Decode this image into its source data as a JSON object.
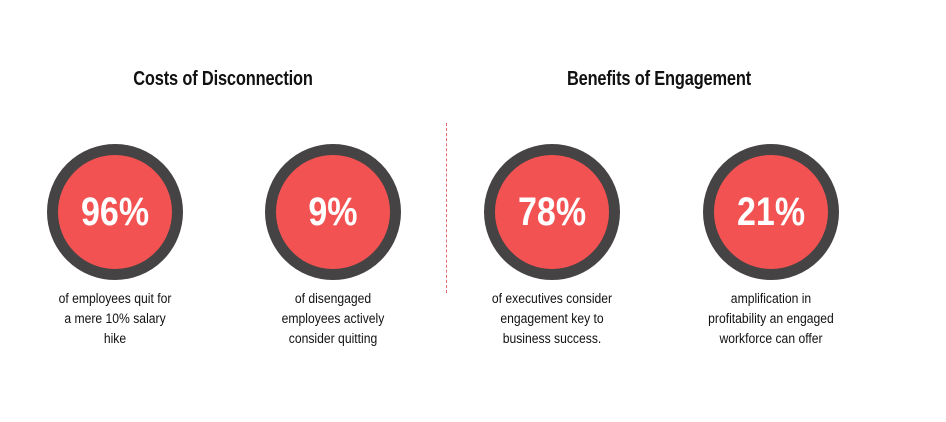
{
  "sections": [
    {
      "title": "Costs of Disconnection",
      "stats": [
        {
          "value": "96%",
          "lines": [
            "of employees quit for",
            "a mere 10% salary",
            "hike"
          ]
        },
        {
          "value": "9%",
          "lines": [
            "of disengaged",
            "employees actively",
            "consider  quitting"
          ]
        }
      ]
    },
    {
      "title": "Benefits of Engagement",
      "stats": [
        {
          "value": "78%",
          "lines": [
            "of executives consider",
            "engagement  key to",
            "business success."
          ]
        },
        {
          "value": "21%",
          "lines": [
            "amplification  in",
            "profitability  an engaged",
            "workforce  can offer"
          ]
        }
      ]
    }
  ]
}
